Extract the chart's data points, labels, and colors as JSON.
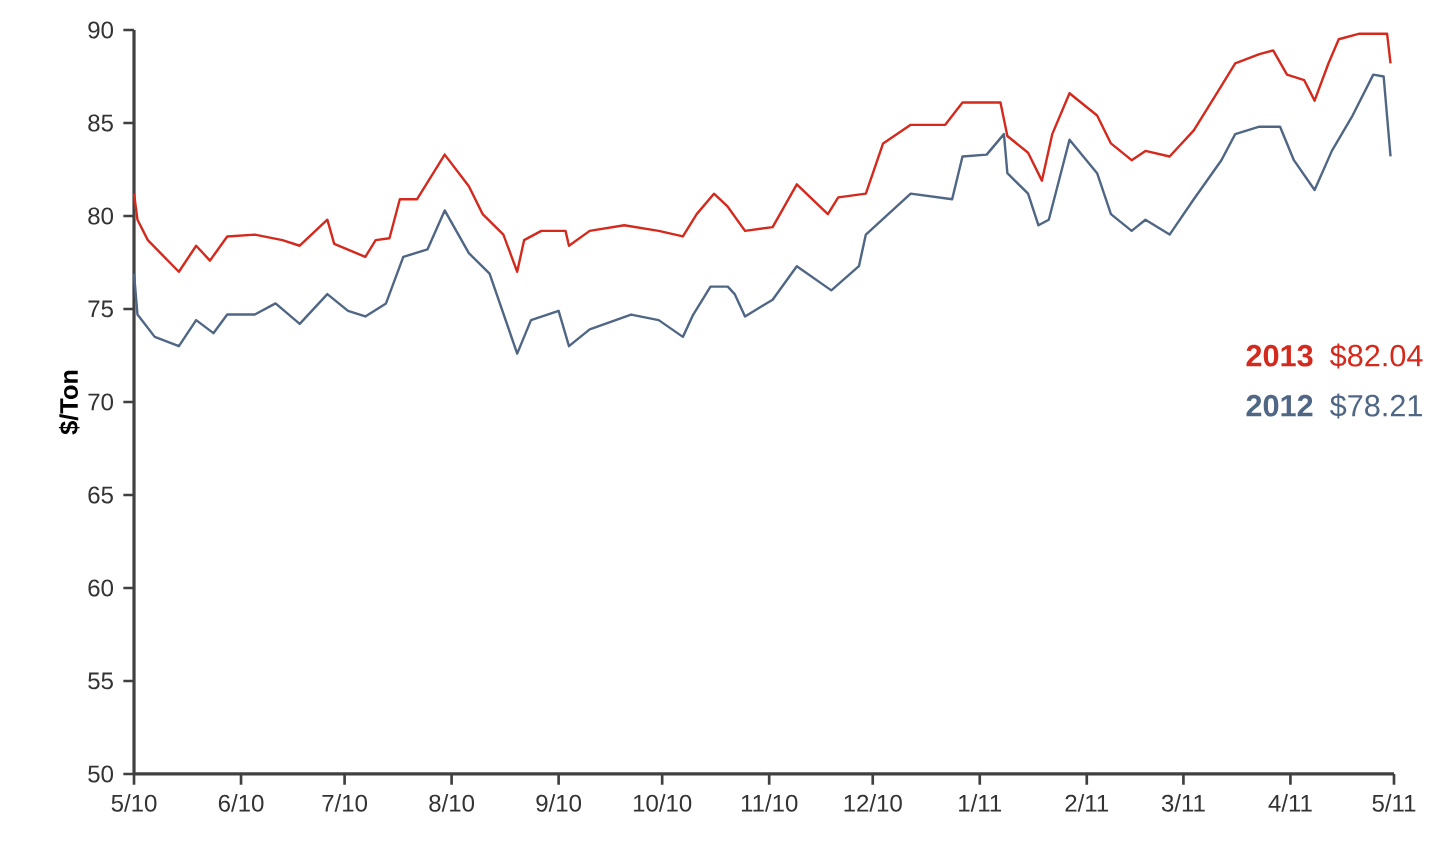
{
  "chart_data": {
    "type": "line",
    "ylabel": "$/Ton",
    "xlim": [
      "2010-05-01",
      "2011-05-01"
    ],
    "ylim": [
      50,
      90
    ],
    "xticks": [
      {
        "value": "2010-05-01",
        "label": "5/10"
      },
      {
        "value": "2010-06-01",
        "label": "6/10"
      },
      {
        "value": "2010-07-01",
        "label": "7/10"
      },
      {
        "value": "2010-08-01",
        "label": "8/10"
      },
      {
        "value": "2010-09-01",
        "label": "9/10"
      },
      {
        "value": "2010-10-01",
        "label": "10/10"
      },
      {
        "value": "2010-11-01",
        "label": "11/10"
      },
      {
        "value": "2010-12-01",
        "label": "12/10"
      },
      {
        "value": "2011-01-01",
        "label": "1/11"
      },
      {
        "value": "2011-02-01",
        "label": "2/11"
      },
      {
        "value": "2011-03-01",
        "label": "3/11"
      },
      {
        "value": "2011-04-01",
        "label": "4/11"
      },
      {
        "value": "2011-05-01",
        "label": "5/11"
      }
    ],
    "yticks": [
      50,
      55,
      60,
      65,
      70,
      75,
      80,
      85,
      90
    ],
    "legend": "right",
    "marker": "none",
    "line_style": "solid",
    "annotations": [
      "$82.04",
      "$78.21"
    ],
    "series": [
      {
        "name": "2013",
        "color": "#d42a1e",
        "x": [
          "2010-05-01",
          "2010-05-02",
          "2010-05-05",
          "2010-05-14",
          "2010-05-19",
          "2010-05-23",
          "2010-05-28",
          "2010-06-05",
          "2010-06-13",
          "2010-06-18",
          "2010-06-26",
          "2010-06-28",
          "2010-07-07",
          "2010-07-10",
          "2010-07-14",
          "2010-07-17",
          "2010-07-22",
          "2010-07-30",
          "2010-08-06",
          "2010-08-10",
          "2010-08-16",
          "2010-08-20",
          "2010-08-22",
          "2010-08-27",
          "2010-09-03",
          "2010-09-04",
          "2010-09-10",
          "2010-09-20",
          "2010-09-30",
          "2010-10-07",
          "2010-10-11",
          "2010-10-16",
          "2010-10-20",
          "2010-10-25",
          "2010-11-02",
          "2010-11-09",
          "2010-11-18",
          "2010-11-21",
          "2010-11-29",
          "2010-12-04",
          "2010-12-12",
          "2010-12-22",
          "2010-12-27",
          "2011-01-07",
          "2011-01-09",
          "2011-01-15",
          "2011-01-19",
          "2011-01-22",
          "2011-01-27",
          "2011-02-04",
          "2011-02-08",
          "2011-02-14",
          "2011-02-18",
          "2011-02-25",
          "2011-03-04",
          "2011-03-12",
          "2011-03-16",
          "2011-03-23",
          "2011-03-27",
          "2011-03-31",
          "2011-04-05",
          "2011-04-08",
          "2011-04-12",
          "2011-04-15",
          "2011-04-21",
          "2011-04-29",
          "2011-04-30"
        ],
        "values": [
          81.2,
          79.8,
          78.7,
          77.0,
          78.4,
          77.6,
          78.9,
          79.0,
          78.7,
          78.4,
          79.8,
          78.5,
          77.8,
          78.7,
          78.8,
          80.9,
          80.9,
          83.3,
          81.6,
          80.1,
          79.0,
          77.0,
          78.7,
          79.2,
          79.2,
          78.4,
          79.2,
          79.5,
          79.2,
          78.9,
          80.1,
          81.2,
          80.5,
          79.2,
          79.4,
          81.7,
          80.1,
          81.0,
          81.2,
          83.9,
          84.9,
          84.9,
          86.1,
          86.1,
          84.3,
          83.4,
          81.9,
          84.4,
          86.6,
          85.4,
          83.9,
          83.0,
          83.5,
          83.2,
          84.6,
          87.0,
          88.2,
          88.7,
          88.9,
          87.6,
          87.3,
          86.2,
          88.2,
          89.5,
          89.8,
          89.8,
          88.2
        ]
      },
      {
        "name": "2012",
        "color": "#4f6685",
        "x": [
          "2010-05-01",
          "2010-05-02",
          "2010-05-07",
          "2010-05-14",
          "2010-05-19",
          "2010-05-24",
          "2010-05-28",
          "2010-06-05",
          "2010-06-11",
          "2010-06-18",
          "2010-06-26",
          "2010-07-02",
          "2010-07-07",
          "2010-07-13",
          "2010-07-18",
          "2010-07-25",
          "2010-07-30",
          "2010-08-06",
          "2010-08-12",
          "2010-08-20",
          "2010-08-24",
          "2010-09-01",
          "2010-09-04",
          "2010-09-10",
          "2010-09-22",
          "2010-09-30",
          "2010-10-07",
          "2010-10-10",
          "2010-10-15",
          "2010-10-20",
          "2010-10-22",
          "2010-10-25",
          "2010-11-02",
          "2010-11-09",
          "2010-11-19",
          "2010-11-27",
          "2010-11-29",
          "2010-12-12",
          "2010-12-24",
          "2010-12-27",
          "2011-01-03",
          "2011-01-08",
          "2011-01-09",
          "2011-01-15",
          "2011-01-18",
          "2011-01-21",
          "2011-01-27",
          "2011-02-04",
          "2011-02-08",
          "2011-02-14",
          "2011-02-18",
          "2011-02-25",
          "2011-03-04",
          "2011-03-12",
          "2011-03-16",
          "2011-03-23",
          "2011-03-29",
          "2011-04-02",
          "2011-04-08",
          "2011-04-13",
          "2011-04-19",
          "2011-04-25",
          "2011-04-28",
          "2011-04-30"
        ],
        "values": [
          76.9,
          74.7,
          73.5,
          73.0,
          74.4,
          73.7,
          74.7,
          74.7,
          75.3,
          74.2,
          75.8,
          74.9,
          74.6,
          75.3,
          77.8,
          78.2,
          80.3,
          78.0,
          76.9,
          72.6,
          74.4,
          74.9,
          73.0,
          73.9,
          74.7,
          74.4,
          73.5,
          74.7,
          76.2,
          76.2,
          75.8,
          74.6,
          75.5,
          77.3,
          76.0,
          77.3,
          79.0,
          81.2,
          80.9,
          83.2,
          83.3,
          84.4,
          82.3,
          81.2,
          79.5,
          79.8,
          84.1,
          82.3,
          80.1,
          79.2,
          79.8,
          79.0,
          80.9,
          83.0,
          84.4,
          84.8,
          84.8,
          83.0,
          81.4,
          83.5,
          85.4,
          87.6,
          87.5,
          83.2
        ]
      }
    ]
  }
}
